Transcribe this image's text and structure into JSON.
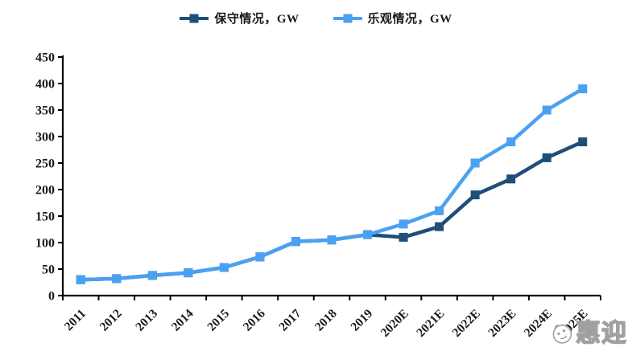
{
  "legend": {
    "items": [
      {
        "label": "保守情况，GW"
      },
      {
        "label": "乐观情况，GW"
      }
    ]
  },
  "watermark": {
    "text": "惠迎",
    "icon": "face-icon",
    "color": "#9b9b9b"
  },
  "colors": {
    "conservative": "#1F4E79",
    "optimistic": "#4AA1F3",
    "axis": "#000000",
    "tick_label": "#1a1a1a",
    "background": "#FFFFFF"
  },
  "chart_data": {
    "type": "line",
    "title": "",
    "xlabel": "",
    "ylabel": "",
    "categories": [
      "2011",
      "2012",
      "2013",
      "2014",
      "2015",
      "2016",
      "2017",
      "2018",
      "2019",
      "2020E",
      "2021E",
      "2022E",
      "2023E",
      "2024E",
      "2025E"
    ],
    "series": [
      {
        "name": "保守情况，GW",
        "color": "#1F4E79",
        "values": [
          30,
          32,
          38,
          43,
          53,
          73,
          102,
          105,
          115,
          110,
          130,
          190,
          220,
          260,
          290
        ]
      },
      {
        "name": "乐观情况，GW",
        "color": "#4AA1F3",
        "values": [
          30,
          32,
          38,
          43,
          53,
          73,
          102,
          105,
          115,
          135,
          160,
          250,
          290,
          350,
          390
        ]
      }
    ],
    "ylim": [
      0,
      450
    ],
    "ytick_step": 50,
    "grid": false,
    "legend_position": "top",
    "marker": "square",
    "x_label_rotation_deg": 45
  }
}
